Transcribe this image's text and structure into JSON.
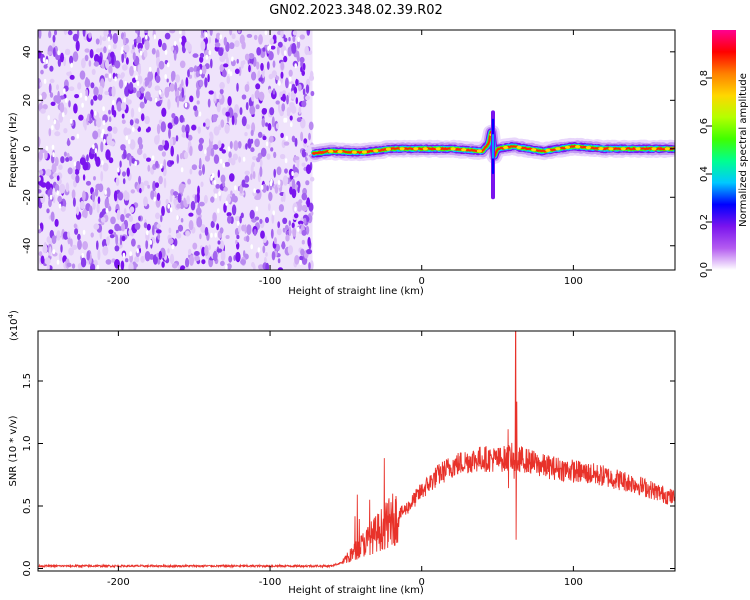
{
  "title": "GN02.2023.348.02.39.R02",
  "chart_data": [
    {
      "type": "heatmap",
      "xlabel": "Height of straight line (km)",
      "ylabel": "Frequency (Hz)",
      "xlim": [
        -253,
        167
      ],
      "ylim": [
        -50,
        49
      ],
      "x_ticks": [
        -200,
        -100,
        0,
        100
      ],
      "y_ticks": [
        -40,
        -20,
        0,
        20,
        40
      ],
      "noise_region_x_end": -72,
      "colorbar": {
        "label": "Normalized spectral amplitude",
        "range": [
          0,
          1
        ],
        "ticks": [
          "0.0",
          "0.2",
          "0.4",
          "0.6",
          "0.8"
        ],
        "colors": [
          "#ffffff",
          "#b45cf0",
          "#7a14ee",
          "#0000ff",
          "#00c8ff",
          "#00ff90",
          "#40ff00",
          "#b4ff00",
          "#ffd700",
          "#ff8000",
          "#ff0000",
          "#ff0090"
        ]
      },
      "signal_ridge": {
        "x": [
          -72,
          -60,
          -40,
          -20,
          0,
          20,
          40,
          44,
          46,
          48,
          50,
          60,
          80,
          100,
          120,
          140,
          167
        ],
        "freq_hz": [
          -2,
          -1,
          -1.5,
          0,
          0,
          0,
          -1,
          2,
          8,
          -3,
          0,
          1,
          -1,
          1,
          0,
          0,
          0
        ]
      },
      "spike": {
        "x": 47,
        "freq_range": [
          -20,
          15
        ]
      }
    },
    {
      "type": "line",
      "xlabel": "Height of straight line (km)",
      "ylabel": "SNR (10 * v/v)",
      "y_multiplier": "(x10",
      "y_multiplier_exp": "4",
      "y_multiplier_close": ")",
      "xlim": [
        -253,
        167
      ],
      "ylim": [
        -0.02,
        1.9
      ],
      "x_ticks": [
        -200,
        -100,
        0,
        100
      ],
      "y_ticks": [
        "0.0",
        "0.5",
        "1.0",
        "1.5"
      ],
      "y_tick_values": [
        0,
        0.5,
        1.0,
        1.5
      ],
      "series_color": "#e8322a",
      "envelope_x": [
        -253,
        -150,
        -60,
        -52,
        -40,
        -30,
        -20,
        -10,
        0,
        10,
        20,
        30,
        40,
        50,
        55,
        60,
        62,
        65,
        70,
        80,
        100,
        120,
        140,
        167
      ],
      "envelope_y": [
        0.02,
        0.02,
        0.02,
        0.05,
        0.18,
        0.28,
        0.38,
        0.48,
        0.62,
        0.74,
        0.82,
        0.86,
        0.88,
        0.87,
        0.88,
        0.9,
        0.82,
        0.88,
        0.86,
        0.82,
        0.78,
        0.74,
        0.68,
        0.56
      ],
      "peak": {
        "x": 62,
        "y": 1.9
      },
      "dip": {
        "x": 62,
        "y": 0.23
      }
    }
  ]
}
